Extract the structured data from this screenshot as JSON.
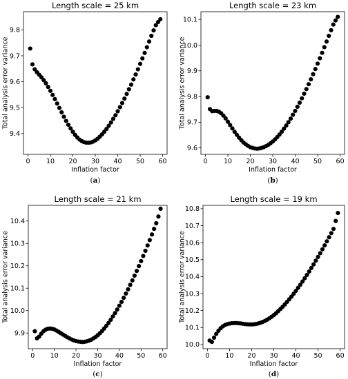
{
  "chart_data": [
    {
      "type": "scatter",
      "title": "Length scale = 25 km",
      "xlabel": "Inflation factor",
      "ylabel": "Total analysis error variance",
      "caption_prefix": "(",
      "caption_letter": "a",
      "caption_suffix": ")",
      "xlim": [
        -2,
        62
      ],
      "ylim": [
        9.32,
        9.87
      ],
      "xticks": [
        0,
        10,
        20,
        30,
        40,
        50,
        60
      ],
      "xtick_labels": [
        "0",
        "10",
        "20",
        "30",
        "40",
        "50",
        "60"
      ],
      "yticks": [
        9.4,
        9.5,
        9.6,
        9.7,
        9.8
      ],
      "ytick_labels": [
        "9.4",
        "9.5",
        "9.6",
        "9.7",
        "9.8"
      ],
      "x": [
        1,
        2,
        3,
        4,
        5,
        6,
        7,
        8,
        9,
        10,
        11,
        12,
        13,
        14,
        15,
        16,
        17,
        18,
        19,
        20,
        21,
        22,
        23,
        24,
        25,
        26,
        27,
        28,
        29,
        30,
        31,
        32,
        33,
        34,
        35,
        36,
        37,
        38,
        39,
        40,
        41,
        42,
        43,
        44,
        45,
        46,
        47,
        48,
        49,
        50,
        51,
        52,
        53,
        54,
        55,
        56,
        57,
        58,
        59
      ],
      "y": [
        9.728,
        9.667,
        9.648,
        9.637,
        9.627,
        9.617,
        9.606,
        9.594,
        9.58,
        9.565,
        9.549,
        9.533,
        9.516,
        9.499,
        9.482,
        9.465,
        9.449,
        9.434,
        9.42,
        9.407,
        9.395,
        9.385,
        9.377,
        9.371,
        9.367,
        9.365,
        9.365,
        9.366,
        9.369,
        9.374,
        9.38,
        9.388,
        9.397,
        9.407,
        9.418,
        9.43,
        9.443,
        9.457,
        9.471,
        9.486,
        9.502,
        9.518,
        9.535,
        9.553,
        9.571,
        9.589,
        9.609,
        9.628,
        9.648,
        9.669,
        9.69,
        9.711,
        9.733,
        9.755,
        9.777,
        9.798,
        9.818,
        9.83,
        9.841
      ]
    },
    {
      "type": "scatter",
      "title": "Length scale = 23 km",
      "xlabel": "Inflation factor",
      "ylabel": "Total analysis error variance",
      "caption_prefix": "(",
      "caption_letter": "b",
      "caption_suffix": ")",
      "xlim": [
        -2,
        62
      ],
      "ylim": [
        9.575,
        10.13
      ],
      "xticks": [
        0,
        10,
        20,
        30,
        40,
        50,
        60
      ],
      "xtick_labels": [
        "0",
        "10",
        "20",
        "30",
        "40",
        "50",
        "60"
      ],
      "yticks": [
        9.6,
        9.7,
        9.8,
        9.9,
        10.0,
        10.1
      ],
      "ytick_labels": [
        "9.6",
        "9.7",
        "9.8",
        "9.9",
        "10.0",
        "10.1"
      ],
      "x": [
        1,
        2,
        3,
        4,
        5,
        6,
        7,
        8,
        9,
        10,
        11,
        12,
        13,
        14,
        15,
        16,
        17,
        18,
        19,
        20,
        21,
        22,
        23,
        24,
        25,
        26,
        27,
        28,
        29,
        30,
        31,
        32,
        33,
        34,
        35,
        36,
        37,
        38,
        39,
        40,
        41,
        42,
        43,
        44,
        45,
        46,
        47,
        48,
        49,
        50,
        51,
        52,
        53,
        54,
        55,
        56,
        57,
        58,
        59
      ],
      "y": [
        9.797,
        9.751,
        9.743,
        9.744,
        9.744,
        9.741,
        9.735,
        9.726,
        9.715,
        9.702,
        9.689,
        9.676,
        9.663,
        9.651,
        9.64,
        9.63,
        9.621,
        9.614,
        9.608,
        9.603,
        9.6,
        9.598,
        9.597,
        9.598,
        9.6,
        9.603,
        9.607,
        9.612,
        9.618,
        9.625,
        9.633,
        9.642,
        9.652,
        9.663,
        9.675,
        9.687,
        9.7,
        9.714,
        9.729,
        9.744,
        9.76,
        9.776,
        9.793,
        9.811,
        9.829,
        9.848,
        9.867,
        9.887,
        9.907,
        9.928,
        9.949,
        9.97,
        9.992,
        10.014,
        10.036,
        10.058,
        10.08,
        10.096,
        10.11
      ]
    },
    {
      "type": "scatter",
      "title": "Length scale = 21 km",
      "xlabel": "Inflation factor",
      "ylabel": "Total analysis error variance",
      "caption_prefix": "(",
      "caption_letter": "c",
      "caption_suffix": ")",
      "xlim": [
        -2,
        62
      ],
      "ylim": [
        9.83,
        10.47
      ],
      "xticks": [
        0,
        10,
        20,
        30,
        40,
        50,
        60
      ],
      "xtick_labels": [
        "0",
        "10",
        "20",
        "30",
        "40",
        "50",
        "60"
      ],
      "yticks": [
        9.9,
        10.0,
        10.1,
        10.2,
        10.3,
        10.4
      ],
      "ytick_labels": [
        "9.9",
        "10.0",
        "10.1",
        "10.2",
        "10.3",
        "10.4"
      ],
      "x": [
        1,
        2,
        3,
        4,
        5,
        6,
        7,
        8,
        9,
        10,
        11,
        12,
        13,
        14,
        15,
        16,
        17,
        18,
        19,
        20,
        21,
        22,
        23,
        24,
        25,
        26,
        27,
        28,
        29,
        30,
        31,
        32,
        33,
        34,
        35,
        36,
        37,
        38,
        39,
        40,
        41,
        42,
        43,
        44,
        45,
        46,
        47,
        48,
        49,
        50,
        51,
        52,
        53,
        54,
        55,
        56,
        57,
        58,
        59
      ],
      "y": [
        9.908,
        9.876,
        9.884,
        9.897,
        9.908,
        9.915,
        9.919,
        9.92,
        9.919,
        9.916,
        9.911,
        9.905,
        9.899,
        9.893,
        9.887,
        9.881,
        9.876,
        9.871,
        9.867,
        9.864,
        9.862,
        9.861,
        9.86,
        9.861,
        9.863,
        9.866,
        9.87,
        9.876,
        9.882,
        9.89,
        9.899,
        9.909,
        9.92,
        9.932,
        9.945,
        9.959,
        9.974,
        9.989,
        10.005,
        10.022,
        10.039,
        10.057,
        10.076,
        10.095,
        10.115,
        10.135,
        10.156,
        10.177,
        10.199,
        10.221,
        10.244,
        10.267,
        10.291,
        10.315,
        10.34,
        10.365,
        10.39,
        10.42,
        10.455
      ]
    },
    {
      "type": "scatter",
      "title": "Length scale = 19 km",
      "xlabel": "Inflation factor",
      "ylabel": "Total analysis error variance",
      "caption_prefix": "(",
      "caption_letter": "d",
      "caption_suffix": ")",
      "xlim": [
        -2,
        62
      ],
      "ylim": [
        9.975,
        10.82
      ],
      "xticks": [
        0,
        10,
        20,
        30,
        40,
        50,
        60
      ],
      "xtick_labels": [
        "0",
        "10",
        "20",
        "30",
        "40",
        "50",
        "60"
      ],
      "yticks": [
        10.0,
        10.1,
        10.2,
        10.3,
        10.4,
        10.5,
        10.6,
        10.7,
        10.8
      ],
      "ytick_labels": [
        "10.0",
        "10.1",
        "10.2",
        "10.3",
        "10.4",
        "10.5",
        "10.6",
        "10.7",
        "10.8"
      ],
      "x": [
        1,
        2,
        3,
        4,
        5,
        6,
        7,
        8,
        9,
        10,
        11,
        12,
        13,
        14,
        15,
        16,
        17,
        18,
        19,
        20,
        21,
        22,
        23,
        24,
        25,
        26,
        27,
        28,
        29,
        30,
        31,
        32,
        33,
        34,
        35,
        36,
        37,
        38,
        39,
        40,
        41,
        42,
        43,
        44,
        45,
        46,
        47,
        48,
        49,
        50,
        51,
        52,
        53,
        54,
        55,
        56,
        57,
        58,
        59
      ],
      "y": [
        10.023,
        10.015,
        10.04,
        10.062,
        10.081,
        10.096,
        10.107,
        10.115,
        10.12,
        10.123,
        10.125,
        10.126,
        10.126,
        10.125,
        10.124,
        10.122,
        10.12,
        10.119,
        10.118,
        10.118,
        10.119,
        10.121,
        10.124,
        10.128,
        10.133,
        10.139,
        10.146,
        10.154,
        10.163,
        10.173,
        10.184,
        10.196,
        10.209,
        10.222,
        10.236,
        10.251,
        10.266,
        10.282,
        10.299,
        10.316,
        10.334,
        10.352,
        10.371,
        10.39,
        10.41,
        10.43,
        10.451,
        10.472,
        10.494,
        10.516,
        10.538,
        10.561,
        10.584,
        10.608,
        10.632,
        10.656,
        10.681,
        10.728,
        10.775
      ]
    }
  ]
}
